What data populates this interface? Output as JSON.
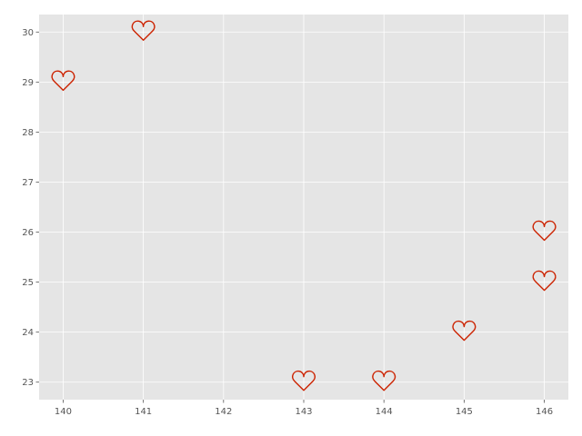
{
  "chart_data": {
    "type": "scatter",
    "title": "",
    "xlabel": "",
    "ylabel": "",
    "xlim": [
      139.7,
      146.3
    ],
    "ylim": [
      22.65,
      30.35
    ],
    "x_ticks": [
      140,
      141,
      142,
      143,
      144,
      145,
      146
    ],
    "y_ticks": [
      23,
      24,
      25,
      26,
      27,
      28,
      29,
      30
    ],
    "grid": true,
    "marker": "heart-outline",
    "colors": {
      "background": "#e5e5e5",
      "grid": "#ffffff",
      "marker": "#cc2200",
      "tick_label": "#555555"
    },
    "series": [
      {
        "points": [
          {
            "x": 140,
            "y": 29
          },
          {
            "x": 141,
            "y": 30
          },
          {
            "x": 143,
            "y": 23
          },
          {
            "x": 144,
            "y": 23
          },
          {
            "x": 145,
            "y": 24
          },
          {
            "x": 146,
            "y": 26
          },
          {
            "x": 146,
            "y": 25
          }
        ]
      }
    ]
  }
}
